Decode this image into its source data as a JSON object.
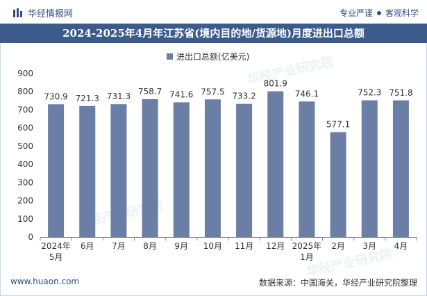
{
  "header": {
    "brand_name": "华经情报网",
    "tagline_left": "专业严谨",
    "tagline_right": "客观科学"
  },
  "title": "2024-2025年4月年江苏省(境内目的地/货源地)月度进出口总额",
  "watermark": "华经产业研究院",
  "footer": {
    "url": "www.huaon.com",
    "source": "数据来源：中国海关，华经产业研究院整理"
  },
  "colors": {
    "title_bg": "#3c5b8c",
    "bar": "#6a7ea6",
    "brand": "#2f4f7f"
  },
  "chart_data": {
    "type": "bar",
    "title": "2024-2025年4月年江苏省(境内目的地/货源地)月度进出口总额",
    "categories": [
      "2024年\n5月",
      "6月",
      "7月",
      "8月",
      "9月",
      "10月",
      "11月",
      "12月",
      "2025年\n1月",
      "2月",
      "3月",
      "4月"
    ],
    "series": [
      {
        "name": "进出口总额(亿美元)",
        "values": [
          730.9,
          721.3,
          731.3,
          758.7,
          741.6,
          757.5,
          733.2,
          801.9,
          746.1,
          577.1,
          752.3,
          751.8
        ]
      }
    ],
    "ylim": [
      0,
      900
    ],
    "yticks": [
      0,
      100,
      200,
      300,
      400,
      500,
      600,
      700,
      800,
      900
    ],
    "legend_position": "top-center",
    "xlabel": "",
    "ylabel": "",
    "grid": false
  }
}
